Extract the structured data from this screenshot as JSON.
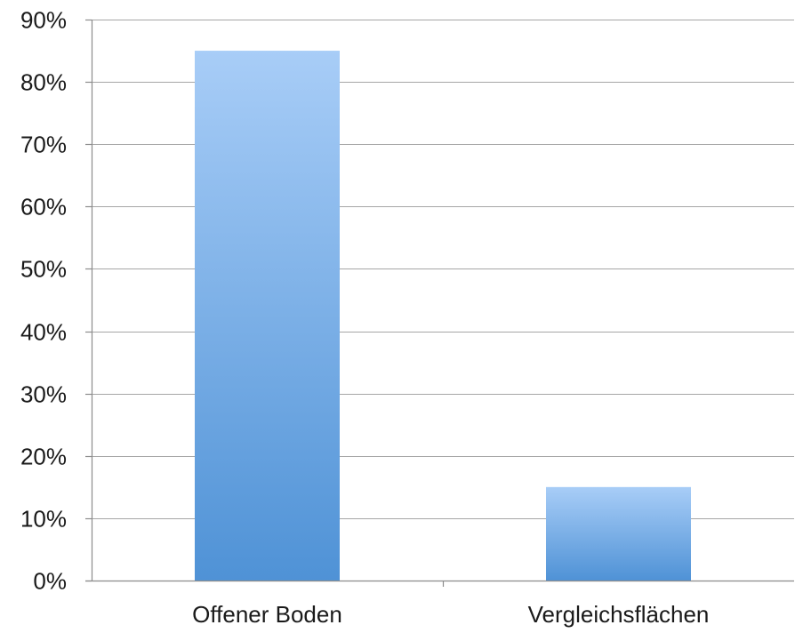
{
  "chart_data": {
    "type": "bar",
    "title": "",
    "xlabel": "",
    "ylabel": "",
    "categories": [
      "Offener Boden",
      "Vergleichsflächen"
    ],
    "values": [
      0.85,
      0.15
    ],
    "ylim": [
      0,
      0.9
    ],
    "y_ticks": [
      0,
      0.1,
      0.2,
      0.3,
      0.4,
      0.5,
      0.6,
      0.7,
      0.8,
      0.9
    ],
    "y_tick_labels": [
      "0%",
      "10%",
      "20%",
      "30%",
      "40%",
      "50%",
      "60%",
      "70%",
      "80%",
      "90%"
    ],
    "grid": true,
    "legend": "none",
    "colors": {
      "bar_top": "#a8cdf7",
      "bar_bottom": "#4f92d6",
      "grid": "#a6a6a6",
      "axis": "#8c8c8c"
    }
  }
}
